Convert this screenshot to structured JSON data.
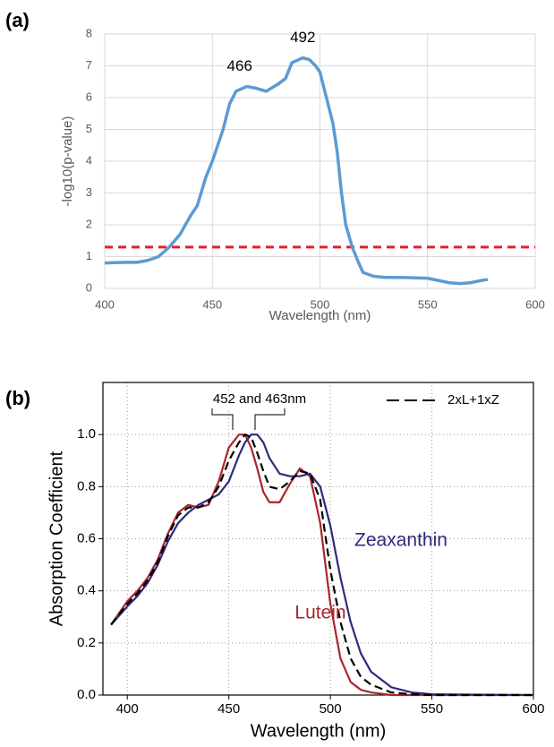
{
  "chart_data": [
    {
      "type": "line",
      "panel_label": "(a)",
      "x_label": "Wavelength (nm)",
      "y_label": "-log10(p-value)",
      "x": [
        400,
        410,
        415,
        420,
        425,
        430,
        435,
        440,
        443,
        447,
        450,
        455,
        458,
        461,
        466,
        470,
        475,
        480,
        484,
        487,
        492,
        495,
        498,
        500,
        503,
        506,
        508,
        510,
        512,
        515,
        518,
        520,
        525,
        530,
        540,
        550,
        555,
        560,
        565,
        570,
        575,
        578
      ],
      "series": [
        {
          "color": "#5b9bd5",
          "values": [
            0.8,
            0.82,
            0.82,
            0.88,
            1.0,
            1.3,
            1.7,
            2.3,
            2.6,
            3.5,
            4.0,
            5.0,
            5.8,
            6.2,
            6.35,
            6.3,
            6.2,
            6.4,
            6.6,
            7.1,
            7.25,
            7.2,
            7.0,
            6.8,
            6.0,
            5.2,
            4.3,
            3.0,
            2.0,
            1.3,
            0.8,
            0.5,
            0.38,
            0.35,
            0.34,
            0.32,
            0.25,
            0.18,
            0.15,
            0.18,
            0.25,
            0.28
          ]
        }
      ],
      "threshold": 1.3,
      "threshold_color": "#ee1c25",
      "annotations": [
        466,
        492
      ],
      "xlim": [
        400,
        600
      ],
      "xticks": [
        400,
        450,
        500,
        550,
        600
      ],
      "ylim": [
        0,
        8
      ],
      "yticks": [
        0,
        1,
        2,
        3,
        4,
        5,
        6,
        7,
        8
      ],
      "grid": true
    },
    {
      "type": "line",
      "panel_label": "(b)",
      "x_label": "Wavelength (nm)",
      "y_label": "Absorption Coefficient",
      "x": [
        392,
        400,
        405,
        410,
        415,
        420,
        425,
        430,
        435,
        440,
        445,
        450,
        455,
        458,
        461,
        464,
        467,
        470,
        475,
        480,
        485,
        490,
        495,
        500,
        505,
        510,
        515,
        520,
        530,
        540,
        550,
        600
      ],
      "series": [
        {
          "name": "Lutein",
          "color": "#a8262b",
          "values": [
            0.27,
            0.36,
            0.4,
            0.45,
            0.52,
            0.62,
            0.7,
            0.73,
            0.72,
            0.73,
            0.82,
            0.95,
            1.0,
            1.0,
            0.95,
            0.87,
            0.78,
            0.74,
            0.74,
            0.81,
            0.87,
            0.84,
            0.66,
            0.35,
            0.14,
            0.05,
            0.02,
            0.01,
            0,
            0,
            0,
            0
          ]
        },
        {
          "name": "Zeaxanthin",
          "color": "#2e2a80",
          "values": [
            0.27,
            0.34,
            0.38,
            0.43,
            0.5,
            0.59,
            0.66,
            0.7,
            0.73,
            0.75,
            0.77,
            0.82,
            0.92,
            0.97,
            1.0,
            1.0,
            0.97,
            0.91,
            0.85,
            0.84,
            0.84,
            0.85,
            0.8,
            0.65,
            0.45,
            0.28,
            0.16,
            0.09,
            0.03,
            0.01,
            0.003,
            0
          ]
        },
        {
          "name": "2xL+1xZ",
          "color": "#000000",
          "dash": true,
          "values": [
            0.27,
            0.35,
            0.39,
            0.44,
            0.51,
            0.61,
            0.69,
            0.72,
            0.72,
            0.74,
            0.8,
            0.9,
            0.97,
            1.0,
            0.99,
            0.93,
            0.86,
            0.8,
            0.79,
            0.82,
            0.86,
            0.85,
            0.75,
            0.48,
            0.28,
            0.14,
            0.07,
            0.04,
            0.01,
            0.003,
            0,
            0
          ]
        }
      ],
      "bracket_text": "452 and 463nm",
      "legend": "upper right",
      "xlim": [
        388,
        600
      ],
      "xticks": [
        400,
        450,
        500,
        550,
        600
      ],
      "ylim": [
        0,
        1.2
      ],
      "yticks": [
        {
          "value": 0,
          "label": "0.0"
        },
        0.2,
        0.4,
        0.6,
        0.8,
        {
          "value": 1,
          "label": "1.0"
        }
      ],
      "grid": true
    }
  ]
}
